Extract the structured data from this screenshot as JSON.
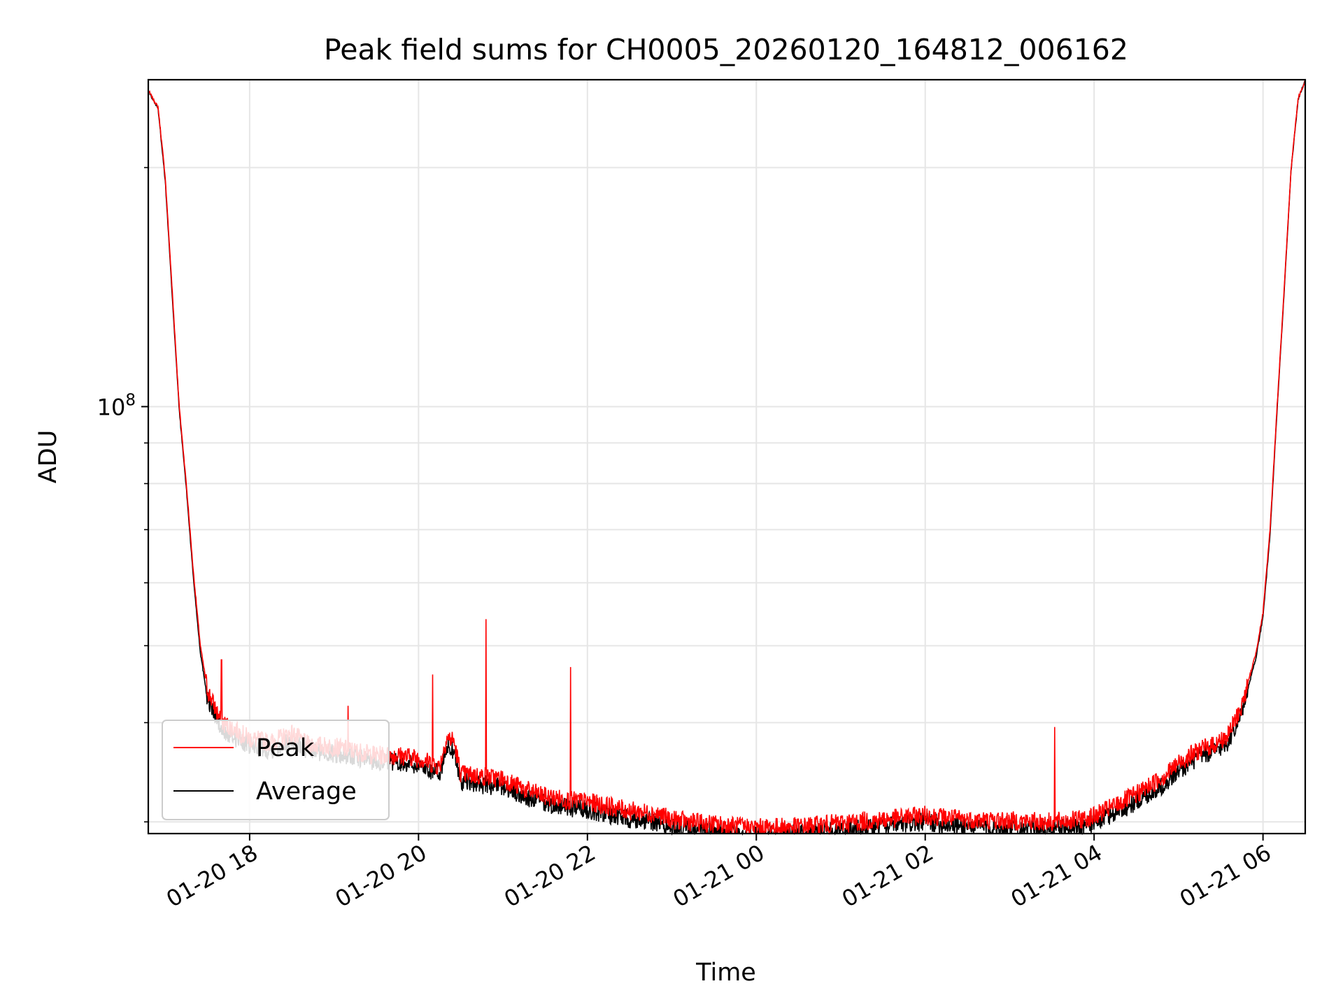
{
  "chart_data": {
    "type": "line",
    "title": "Peak field sums for CH0005_20260120_164812_006162",
    "xlabel": "Time",
    "ylabel": "ADU",
    "yscale": "log",
    "ylim": [
      29000000,
      258000000
    ],
    "xlim": [
      "2026-01-20 16:48",
      "2026-01-21 06:30"
    ],
    "x_ticks": [
      {
        "label": "01-20 18",
        "time": "2026-01-20 18:00"
      },
      {
        "label": "01-20 20",
        "time": "2026-01-20 20:00"
      },
      {
        "label": "01-20 22",
        "time": "2026-01-20 22:00"
      },
      {
        "label": "01-21 00",
        "time": "2026-01-21 00:00"
      },
      {
        "label": "01-21 02",
        "time": "2026-01-21 02:00"
      },
      {
        "label": "01-21 04",
        "time": "2026-01-21 04:00"
      },
      {
        "label": "01-21 06",
        "time": "2026-01-21 06:00"
      }
    ],
    "y_ticks": [
      {
        "base": "10",
        "exp": "8",
        "value": 100000000
      }
    ],
    "grid": true,
    "legend": "lower-left",
    "x": [
      "2026-01-20 16:48",
      "2026-01-20 16:55",
      "2026-01-20 17:00",
      "2026-01-20 17:05",
      "2026-01-20 17:10",
      "2026-01-20 17:15",
      "2026-01-20 17:20",
      "2026-01-20 17:25",
      "2026-01-20 17:30",
      "2026-01-20 17:40",
      "2026-01-20 17:50",
      "2026-01-20 18:00",
      "2026-01-20 18:15",
      "2026-01-20 18:30",
      "2026-01-20 18:40",
      "2026-01-20 19:00",
      "2026-01-20 19:30",
      "2026-01-20 19:45",
      "2026-01-20 20:00",
      "2026-01-20 20:15",
      "2026-01-20 20:20",
      "2026-01-20 20:25",
      "2026-01-20 20:30",
      "2026-01-20 21:00",
      "2026-01-20 21:15",
      "2026-01-20 21:30",
      "2026-01-20 21:50",
      "2026-01-20 22:00",
      "2026-01-20 22:30",
      "2026-01-20 22:50",
      "2026-01-20 23:00",
      "2026-01-20 23:30",
      "2026-01-21 00:00",
      "2026-01-21 00:30",
      "2026-01-21 01:00",
      "2026-01-21 01:30",
      "2026-01-21 02:00",
      "2026-01-21 02:30",
      "2026-01-21 03:00",
      "2026-01-21 03:30",
      "2026-01-21 03:50",
      "2026-01-21 04:00",
      "2026-01-21 04:30",
      "2026-01-21 04:50",
      "2026-01-21 05:00",
      "2026-01-21 05:15",
      "2026-01-21 05:25",
      "2026-01-21 05:35",
      "2026-01-21 05:45",
      "2026-01-21 05:55",
      "2026-01-21 06:00",
      "2026-01-21 06:05",
      "2026-01-21 06:10",
      "2026-01-21 06:15",
      "2026-01-21 06:20",
      "2026-01-21 06:25",
      "2026-01-21 06:30"
    ],
    "series": [
      {
        "name": "Peak",
        "color": "#ff0000",
        "values": [
          250000000,
          238000000,
          195000000,
          140000000,
          100000000,
          80000000,
          62000000,
          50000000,
          44000000,
          40000000,
          39200000,
          38200000,
          37800000,
          38800000,
          37600000,
          37300000,
          36400000,
          36400000,
          36100000,
          35200000,
          38300000,
          38000000,
          34500000,
          34000000,
          33000000,
          32300000,
          31900000,
          31800000,
          31000000,
          30700000,
          30200000,
          29800000,
          29500000,
          29600000,
          29900000,
          30200000,
          30600000,
          30200000,
          30100000,
          30000000,
          30200000,
          30500000,
          32500000,
          34300000,
          35600000,
          37000000,
          37500000,
          38500000,
          42000000,
          49000000,
          55000000,
          70000000,
          100000000,
          140000000,
          200000000,
          245000000,
          257000000
        ],
        "spikes": [
          {
            "time": "2026-01-20 17:40",
            "value": 48000000
          },
          {
            "time": "2026-01-20 19:10",
            "value": 42000000
          },
          {
            "time": "2026-01-20 20:10",
            "value": 46000000
          },
          {
            "time": "2026-01-20 20:48",
            "value": 54000000
          },
          {
            "time": "2026-01-20 21:48",
            "value": 47000000
          },
          {
            "time": "2026-01-21 03:32",
            "value": 39500000
          }
        ]
      },
      {
        "name": "Average",
        "color": "#000000",
        "values": [
          250000000,
          237000000,
          193000000,
          138000000,
          99000000,
          79000000,
          61000000,
          49000000,
          43000000,
          39000000,
          38300000,
          37400000,
          37000000,
          38000000,
          36900000,
          36600000,
          35800000,
          35700000,
          35400000,
          34500000,
          37300000,
          37000000,
          33700000,
          33200000,
          32300000,
          31600000,
          31200000,
          31100000,
          30300000,
          30000000,
          29500000,
          29100000,
          28800000,
          29000000,
          29300000,
          29600000,
          30000000,
          29600000,
          29500000,
          29400000,
          29600000,
          29900000,
          31800000,
          33500000,
          34800000,
          36300000,
          36800000,
          37800000,
          41300000,
          48300000,
          54300000,
          69000000,
          99000000,
          139000000,
          199000000,
          244000000,
          257000000
        ]
      }
    ]
  }
}
